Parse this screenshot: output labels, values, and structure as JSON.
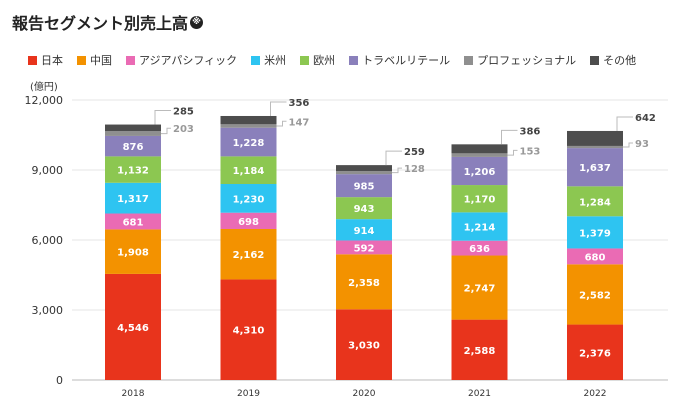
{
  "title": "報告セグメント別売上高",
  "title_mark": "※",
  "chart_data": {
    "type": "bar",
    "stacked": true,
    "unit_label": "(億円)",
    "categories": [
      "2018",
      "2019",
      "2020",
      "2021",
      "2022"
    ],
    "ylim": [
      0,
      12000
    ],
    "yticks": [
      0,
      3000,
      6000,
      9000,
      12000
    ],
    "ytick_labels": [
      "0",
      "3,000",
      "6,000",
      "9,000",
      "12,000"
    ],
    "grid": true,
    "legend_position": "top",
    "series": [
      {
        "name": "日本",
        "color": "#e8341c",
        "values": [
          4546,
          4310,
          3030,
          2588,
          2376
        ],
        "labels": [
          "4,546",
          "4,310",
          "3,030",
          "2,588",
          "2,376"
        ]
      },
      {
        "name": "中国",
        "color": "#f39200",
        "values": [
          1908,
          2162,
          2358,
          2747,
          2582
        ],
        "labels": [
          "1,908",
          "2,162",
          "2,358",
          "2,747",
          "2,582"
        ]
      },
      {
        "name": "アジアパシフィック",
        "color": "#ea6bb4",
        "values": [
          681,
          698,
          592,
          636,
          680
        ],
        "labels": [
          "681",
          "698",
          "592",
          "636",
          "680"
        ]
      },
      {
        "name": "米州",
        "color": "#2ec4f1",
        "values": [
          1317,
          1230,
          914,
          1214,
          1379
        ],
        "labels": [
          "1,317",
          "1,230",
          "914",
          "1,214",
          "1,379"
        ]
      },
      {
        "name": "欧州",
        "color": "#8cc751",
        "values": [
          1132,
          1184,
          943,
          1170,
          1284
        ],
        "labels": [
          "1,132",
          "1,184",
          "943",
          "1,170",
          "1,284"
        ]
      },
      {
        "name": "トラベルリテール",
        "color": "#8a80bb",
        "values": [
          876,
          1228,
          985,
          1206,
          1637
        ],
        "labels": [
          "876",
          "1,228",
          "985",
          "1,206",
          "1,637"
        ]
      },
      {
        "name": "プロフェッショナル",
        "color": "#8f8f8f",
        "values": [
          203,
          147,
          128,
          153,
          93
        ],
        "labels": [
          "203",
          "147",
          "128",
          "153",
          "93"
        ]
      },
      {
        "name": "その他",
        "color": "#4d4d4d",
        "values": [
          285,
          356,
          259,
          386,
          642
        ],
        "labels": [
          "285",
          "356",
          "259",
          "386",
          "642"
        ]
      }
    ]
  }
}
